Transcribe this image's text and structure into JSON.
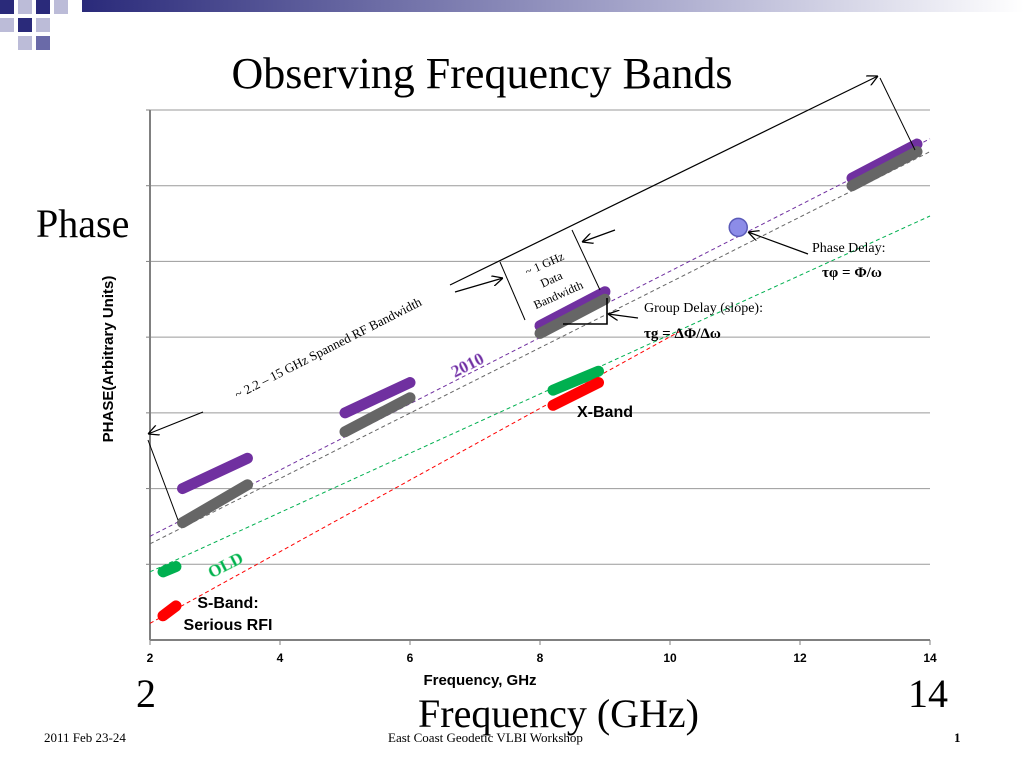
{
  "slide": {
    "title": "Observing Frequency Bands",
    "phase_label": "Phase",
    "freq_label": "Frequency (GHz)",
    "left_freq": "2",
    "right_freq": "14",
    "footer_left": "2011 Feb 23-24",
    "footer_center": "East Coast Geodetic VLBI Workshop",
    "footer_right": "1"
  },
  "chart_data": {
    "type": "line",
    "xlabel": "Frequency, GHz",
    "ylabel": "PHASE(Arbitrary Units)",
    "xlim": [
      2,
      14
    ],
    "ylim": [
      0,
      7
    ],
    "xticks": [
      2,
      4,
      6,
      8,
      10,
      12,
      14
    ],
    "grid": true,
    "colors": {
      "purple": "#7030a0",
      "gray": "#666666",
      "green": "#00b050",
      "red": "#ff0000",
      "point": "#8c8ce8"
    },
    "series": [
      {
        "name": "2010",
        "color": "#7030a0",
        "trend": [
          [
            2.0,
            1.37
          ],
          [
            14.0,
            6.62
          ]
        ],
        "bands": [
          [
            [
              2.5,
              2.0
            ],
            [
              3.5,
              2.4
            ]
          ],
          [
            [
              5.0,
              3.0
            ],
            [
              6.0,
              3.4
            ]
          ],
          [
            [
              8.0,
              4.15
            ],
            [
              9.0,
              4.6
            ]
          ],
          [
            [
              12.8,
              6.1
            ],
            [
              13.8,
              6.55
            ]
          ]
        ]
      },
      {
        "name": "",
        "color": "#666666",
        "trend": [
          [
            2.0,
            1.27
          ],
          [
            14.0,
            6.45
          ]
        ],
        "bands": [
          [
            [
              2.5,
              1.55
            ],
            [
              3.5,
              2.05
            ]
          ],
          [
            [
              5.0,
              2.75
            ],
            [
              6.0,
              3.2
            ]
          ],
          [
            [
              8.0,
              4.05
            ],
            [
              9.0,
              4.5
            ]
          ],
          [
            [
              12.8,
              6.0
            ],
            [
              13.8,
              6.45
            ]
          ]
        ]
      },
      {
        "name": "OLD",
        "color": "#00b050",
        "trend": [
          [
            2.0,
            0.9
          ],
          [
            14.0,
            5.6
          ]
        ],
        "bands": [
          [
            [
              2.2,
              0.9
            ],
            [
              2.4,
              0.97
            ]
          ],
          [
            [
              8.2,
              3.3
            ],
            [
              8.9,
              3.55
            ]
          ]
        ]
      },
      {
        "name": "",
        "color": "#ff0000",
        "trend": [
          [
            2.0,
            0.22
          ],
          [
            10.2,
            4.1
          ]
        ],
        "bands": [
          [
            [
              2.2,
              0.32
            ],
            [
              2.4,
              0.45
            ]
          ],
          [
            [
              8.2,
              3.1
            ],
            [
              8.9,
              3.4
            ]
          ]
        ]
      }
    ],
    "phase_point": {
      "x": 11.05,
      "y": 5.45
    },
    "annotations": {
      "span": "~ 2.2 – 15 GHz Spanned RF Bandwidth",
      "bw_line1": "~ 1 GHz",
      "bw_line2": "Data",
      "bw_line3": "Bandwidth",
      "tag_2010": "2010",
      "tag_old": "OLD",
      "xband": "X-Band",
      "sband_line1": "S-Band:",
      "sband_line2": "Serious RFI",
      "phase_delay_title": "Phase Delay:",
      "phase_delay_eq": "τφ = Φ/ω",
      "group_delay_title": "Group Delay (slope):",
      "group_delay_eq": "τg = ΔΦ/Δω"
    }
  }
}
